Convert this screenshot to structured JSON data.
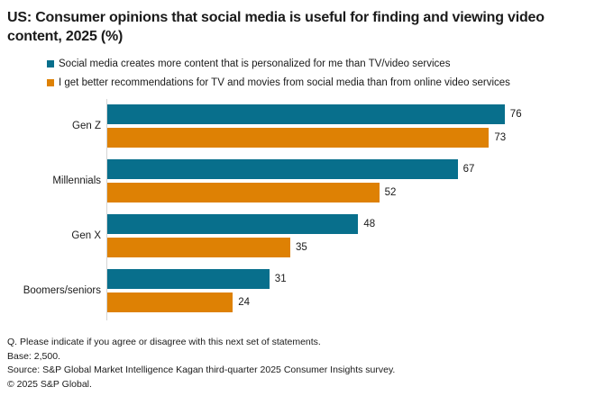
{
  "title": "US: Consumer opinions that social media is useful for finding and viewing video content, 2025 (%)",
  "colors": {
    "series1": "#086f8c",
    "series2": "#de8104",
    "axis_line": "#d4d4d4",
    "text": "#1a1a1a"
  },
  "chart_data": {
    "type": "bar",
    "orientation": "horizontal",
    "title": "US: Consumer opinions that social media is useful for finding and viewing video content, 2025 (%)",
    "categories": [
      "Gen Z",
      "Millennials",
      "Gen X",
      "Boomers/seniors"
    ],
    "series": [
      {
        "name": "Social media creates more content that is personalized for me than TV/video services",
        "color": "#086f8c",
        "values": [
          76,
          67,
          48,
          31
        ]
      },
      {
        "name": "I get better recommendations for TV and movies from social media than from online video services",
        "color": "#de8104",
        "values": [
          73,
          52,
          35,
          24
        ]
      }
    ],
    "xlim": [
      0,
      93
    ],
    "grid": false,
    "data_labels": true,
    "legend_position": "top-left"
  },
  "footer": {
    "question": "Q. Please indicate if you agree or disagree with this next set of statements.",
    "base": "Base: 2,500.",
    "source": "Source: S&P Global Market Intelligence Kagan third-quarter 2025 Consumer Insights survey.",
    "copyright": "© 2025 S&P Global."
  }
}
